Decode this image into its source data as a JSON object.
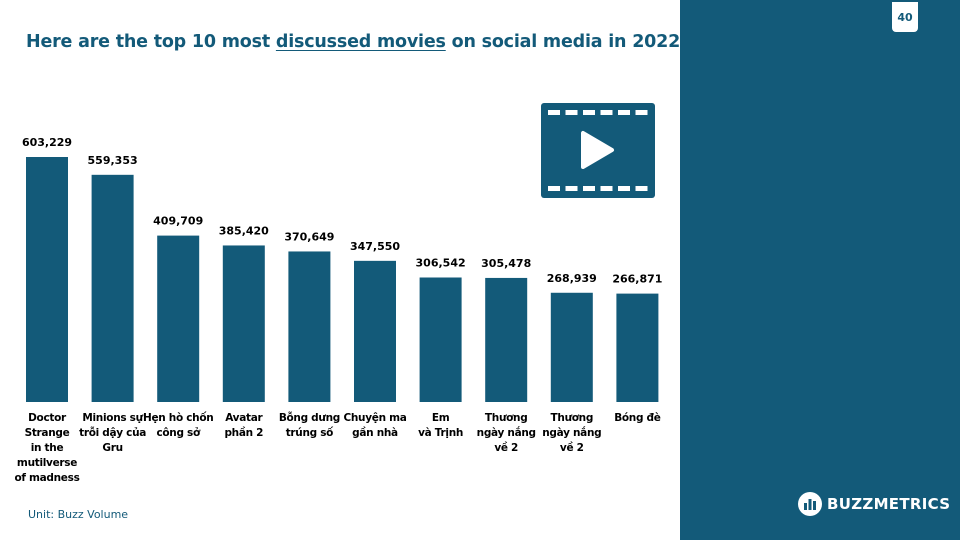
{
  "page_number": "40",
  "title": {
    "before": "Here are the top 10 most ",
    "highlight": "discussed movies",
    "after": " on social media in 2022"
  },
  "unit_note": "Unit: Buzz Volume",
  "brand": {
    "name": "BUZZMETRICS"
  },
  "colors": {
    "primary": "#135a79",
    "text": "#000000",
    "background": "#ffffff"
  },
  "icons": {
    "film": "film-strip-play-icon",
    "logo": "buzzmetrics-logo-icon"
  },
  "chart_data": {
    "type": "bar",
    "categories": [
      [
        "Doctor",
        "Strange",
        "in the",
        "mutilverse",
        "of madness"
      ],
      [
        "Minions sự",
        "trỗi dậy của",
        "Gru"
      ],
      [
        "Hẹn hò chốn",
        "công sở"
      ],
      [
        "Avatar",
        "phần 2"
      ],
      [
        "Bỗng dưng",
        "trúng số"
      ],
      [
        "Chuyện ma",
        "gần nhà"
      ],
      [
        "Em",
        "và Trịnh"
      ],
      [
        "Thương",
        "ngày nắng",
        "về 2"
      ],
      [
        "Thương",
        "ngày nắng",
        "về 2"
      ],
      [
        "Bóng đè"
      ]
    ],
    "values": [
      603229,
      559353,
      409709,
      385420,
      370649,
      347550,
      306542,
      305478,
      268939,
      266871
    ],
    "data_labels": [
      "603,229",
      "559,353",
      "409,709",
      "385,420",
      "370,649",
      "347,550",
      "306,542",
      "305,478",
      "268,939",
      "266,871"
    ],
    "grid": false,
    "legend": "none"
  }
}
